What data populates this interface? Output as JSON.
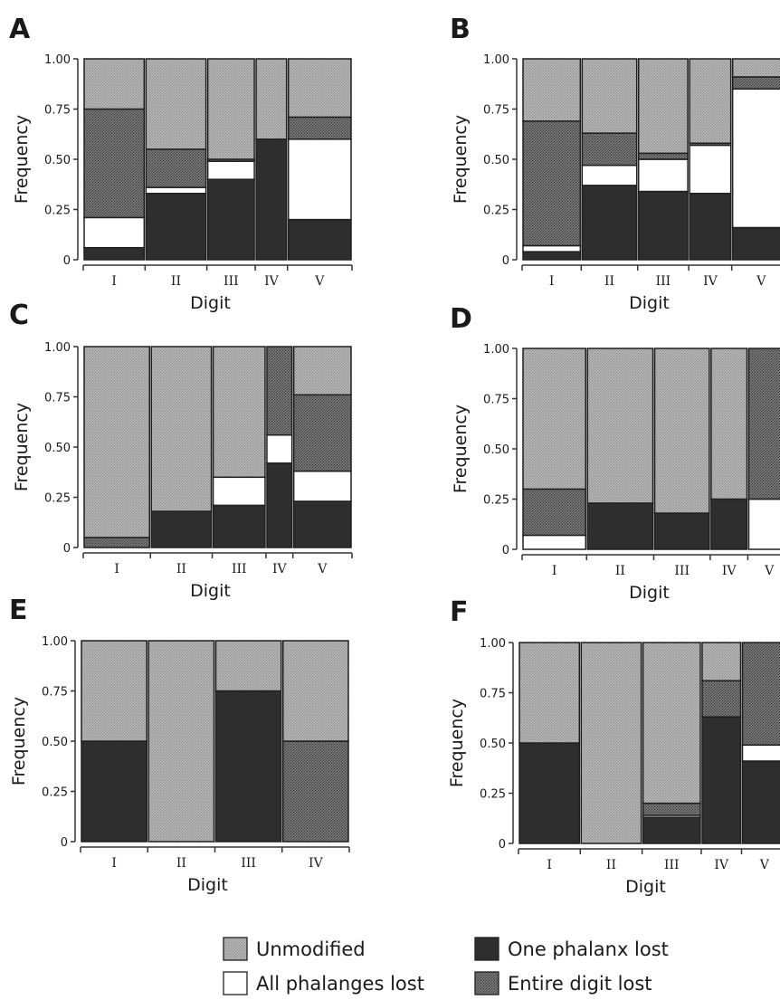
{
  "colors": {
    "unmodified": "#a9a9a9",
    "all_phalanges_lost": "#ffffff",
    "one_phalanx_lost": "#2e2e2e",
    "entire_digit_lost": "#666666"
  },
  "legend": [
    {
      "key": "unmodified",
      "label": "Unmodified"
    },
    {
      "key": "all_phalanges_lost",
      "label": "All phalanges lost"
    },
    {
      "key": "one_phalanx_lost",
      "label": "One phalanx lost"
    },
    {
      "key": "entire_digit_lost",
      "label": "Entire digit lost"
    }
  ],
  "chart_data": [
    {
      "panel": "A",
      "type": "bar",
      "stacked": true,
      "variable_width": true,
      "xlabel": "Digit",
      "ylabel": "Frequency",
      "ylim": [
        0,
        1
      ],
      "yticks": [
        "0",
        "0.25",
        "0.50",
        "0.75",
        "1.00"
      ],
      "categories": [
        "I",
        "II",
        "III",
        "IV",
        "V"
      ],
      "widths": [
        0.23,
        0.23,
        0.18,
        0.12,
        0.24
      ],
      "stacks": [
        {
          "one_phalanx_lost": 0.06,
          "all_phalanges_lost": 0.15,
          "entire_digit_lost": 0.54,
          "unmodified": 0.25
        },
        {
          "one_phalanx_lost": 0.33,
          "all_phalanges_lost": 0.03,
          "entire_digit_lost": 0.19,
          "unmodified": 0.45
        },
        {
          "one_phalanx_lost": 0.4,
          "all_phalanges_lost": 0.09,
          "entire_digit_lost": 0.01,
          "unmodified": 0.5
        },
        {
          "one_phalanx_lost": 0.6,
          "all_phalanges_lost": 0.0,
          "entire_digit_lost": 0.0,
          "unmodified": 0.4
        },
        {
          "one_phalanx_lost": 0.2,
          "all_phalanges_lost": 0.4,
          "entire_digit_lost": 0.11,
          "unmodified": 0.29
        }
      ]
    },
    {
      "panel": "B",
      "type": "bar",
      "stacked": true,
      "variable_width": true,
      "xlabel": "Digit",
      "ylabel": "Frequency",
      "ylim": [
        0,
        1
      ],
      "yticks": [
        "0",
        "0.25",
        "0.50",
        "0.75",
        "1.00"
      ],
      "categories": [
        "I",
        "II",
        "III",
        "IV",
        "V"
      ],
      "widths": [
        0.22,
        0.21,
        0.19,
        0.16,
        0.22
      ],
      "stacks": [
        {
          "one_phalanx_lost": 0.04,
          "all_phalanges_lost": 0.03,
          "entire_digit_lost": 0.62,
          "unmodified": 0.31
        },
        {
          "one_phalanx_lost": 0.37,
          "all_phalanges_lost": 0.1,
          "entire_digit_lost": 0.16,
          "unmodified": 0.37
        },
        {
          "one_phalanx_lost": 0.34,
          "all_phalanges_lost": 0.16,
          "entire_digit_lost": 0.03,
          "unmodified": 0.47
        },
        {
          "one_phalanx_lost": 0.33,
          "all_phalanges_lost": 0.24,
          "entire_digit_lost": 0.01,
          "unmodified": 0.42
        },
        {
          "one_phalanx_lost": 0.16,
          "all_phalanges_lost": 0.69,
          "entire_digit_lost": 0.06,
          "unmodified": 0.09
        }
      ]
    },
    {
      "panel": "C",
      "type": "bar",
      "stacked": true,
      "variable_width": true,
      "xlabel": "Digit",
      "ylabel": "Frequency",
      "ylim": [
        0,
        1
      ],
      "yticks": [
        "0",
        "0.25",
        "0.50",
        "0.75",
        "1.00"
      ],
      "categories": [
        "I",
        "II",
        "III",
        "IV",
        "V"
      ],
      "widths": [
        0.25,
        0.23,
        0.2,
        0.1,
        0.22
      ],
      "stacks": [
        {
          "one_phalanx_lost": 0.0,
          "all_phalanges_lost": 0.0,
          "entire_digit_lost": 0.05,
          "unmodified": 0.95
        },
        {
          "one_phalanx_lost": 0.18,
          "all_phalanges_lost": 0.0,
          "entire_digit_lost": 0.0,
          "unmodified": 0.82
        },
        {
          "one_phalanx_lost": 0.21,
          "all_phalanges_lost": 0.14,
          "entire_digit_lost": 0.0,
          "unmodified": 0.65
        },
        {
          "one_phalanx_lost": 0.42,
          "all_phalanges_lost": 0.14,
          "entire_digit_lost": 0.44,
          "unmodified": 0.0
        },
        {
          "one_phalanx_lost": 0.23,
          "all_phalanges_lost": 0.15,
          "entire_digit_lost": 0.38,
          "unmodified": 0.24
        }
      ]
    },
    {
      "panel": "D",
      "type": "bar",
      "stacked": true,
      "variable_width": true,
      "xlabel": "Digit",
      "ylabel": "Frequency",
      "ylim": [
        0,
        1
      ],
      "yticks": [
        "0",
        "0.25",
        "0.50",
        "0.75",
        "1.00"
      ],
      "categories": [
        "I",
        "II",
        "III",
        "IV",
        "V"
      ],
      "widths": [
        0.24,
        0.25,
        0.21,
        0.14,
        0.16
      ],
      "stacks": [
        {
          "one_phalanx_lost": 0.0,
          "all_phalanges_lost": 0.07,
          "entire_digit_lost": 0.23,
          "unmodified": 0.7
        },
        {
          "one_phalanx_lost": 0.23,
          "all_phalanges_lost": 0.0,
          "entire_digit_lost": 0.0,
          "unmodified": 0.77
        },
        {
          "one_phalanx_lost": 0.18,
          "all_phalanges_lost": 0.0,
          "entire_digit_lost": 0.0,
          "unmodified": 0.82
        },
        {
          "one_phalanx_lost": 0.25,
          "all_phalanges_lost": 0.0,
          "entire_digit_lost": 0.0,
          "unmodified": 0.75
        },
        {
          "one_phalanx_lost": 0.0,
          "all_phalanges_lost": 0.25,
          "entire_digit_lost": 0.75,
          "unmodified": 0.0
        }
      ]
    },
    {
      "panel": "E",
      "type": "bar",
      "stacked": true,
      "variable_width": true,
      "xlabel": "Digit",
      "ylabel": "Frequency",
      "ylim": [
        0,
        1
      ],
      "yticks": [
        "0",
        "0.25",
        "0.50",
        "0.75",
        "1.00"
      ],
      "categories": [
        "I",
        "II",
        "III",
        "IV"
      ],
      "widths": [
        0.25,
        0.25,
        0.25,
        0.25
      ],
      "stacks": [
        {
          "one_phalanx_lost": 0.5,
          "all_phalanges_lost": 0.0,
          "entire_digit_lost": 0.0,
          "unmodified": 0.5
        },
        {
          "one_phalanx_lost": 0.0,
          "all_phalanges_lost": 0.0,
          "entire_digit_lost": 0.0,
          "unmodified": 1.0
        },
        {
          "one_phalanx_lost": 0.75,
          "all_phalanges_lost": 0.0,
          "entire_digit_lost": 0.0,
          "unmodified": 0.25
        },
        {
          "one_phalanx_lost": 0.0,
          "all_phalanges_lost": 0.0,
          "entire_digit_lost": 0.5,
          "unmodified": 0.5
        }
      ]
    },
    {
      "panel": "F",
      "type": "bar",
      "stacked": true,
      "variable_width": true,
      "xlabel": "Digit",
      "ylabel": "Frequency",
      "ylim": [
        0,
        1
      ],
      "yticks": [
        "0",
        "0.25",
        "0.50",
        "0.75",
        "1.00"
      ],
      "categories": [
        "I",
        "II",
        "III",
        "IV",
        "V"
      ],
      "widths": [
        0.23,
        0.23,
        0.22,
        0.15,
        0.17
      ],
      "stacks": [
        {
          "one_phalanx_lost": 0.5,
          "all_phalanges_lost": 0.0,
          "entire_digit_lost": 0.0,
          "unmodified": 0.5
        },
        {
          "one_phalanx_lost": 0.0,
          "all_phalanges_lost": 0.0,
          "entire_digit_lost": 0.0,
          "unmodified": 1.0
        },
        {
          "one_phalanx_lost": 0.13,
          "all_phalanges_lost": 0.01,
          "entire_digit_lost": 0.06,
          "unmodified": 0.8
        },
        {
          "one_phalanx_lost": 0.63,
          "all_phalanges_lost": 0.0,
          "entire_digit_lost": 0.18,
          "unmodified": 0.19
        },
        {
          "one_phalanx_lost": 0.41,
          "all_phalanges_lost": 0.08,
          "entire_digit_lost": 0.51,
          "unmodified": 0.0
        }
      ]
    }
  ]
}
